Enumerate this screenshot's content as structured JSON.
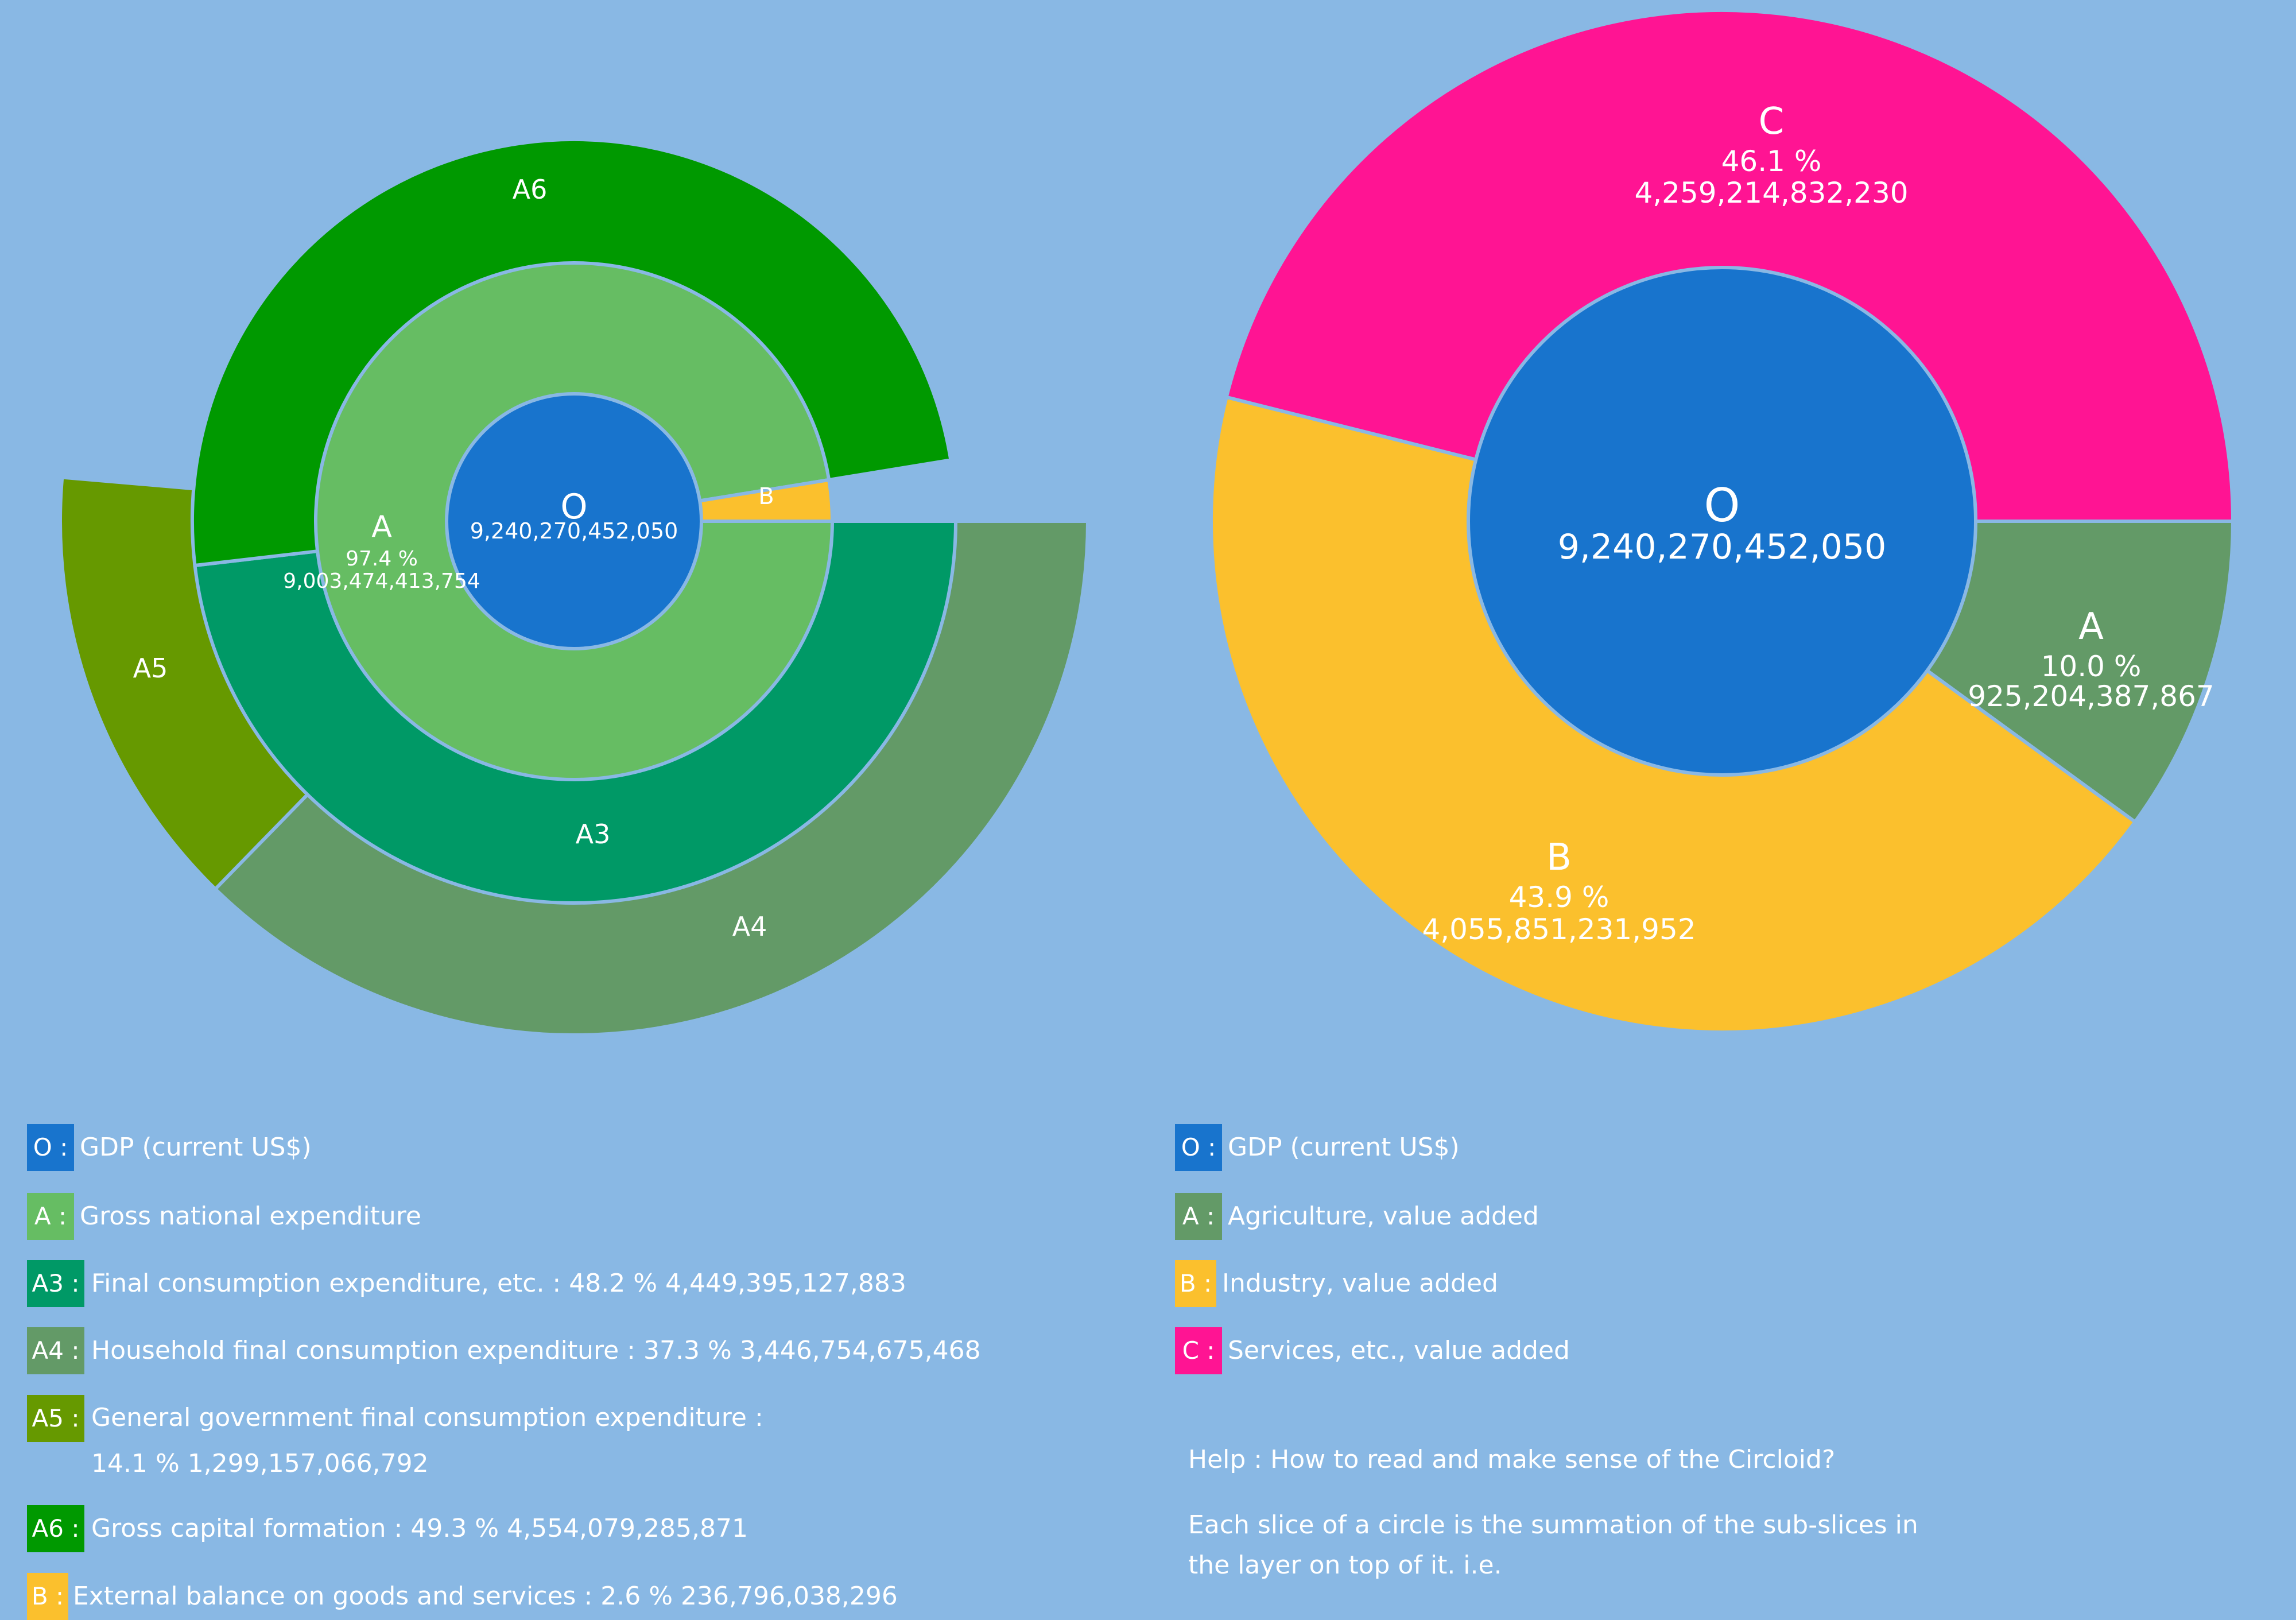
{
  "charts": {
    "left": {
      "center": {
        "code": "O",
        "value": "9,240,270,452,050"
      },
      "ring1": [
        {
          "code": "A",
          "percent": "97.4 %",
          "value": "9,003,474,413,754"
        },
        {
          "code": "B"
        }
      ],
      "ring2": [
        {
          "code": "A3"
        },
        {
          "code": "A6"
        }
      ],
      "ring3": [
        {
          "code": "A4"
        },
        {
          "code": "A5"
        }
      ]
    },
    "right": {
      "center": {
        "code": "O",
        "value": "9,240,270,452,050"
      },
      "slices": [
        {
          "code": "A",
          "percent": "10.0 %",
          "value": "925,204,387,867"
        },
        {
          "code": "B",
          "percent": "43.9 %",
          "value": "4,055,851,231,952"
        },
        {
          "code": "C",
          "percent": "46.1 %",
          "value": "4,259,214,832,230"
        }
      ]
    }
  },
  "chart_data": [
    {
      "type": "pie",
      "series": [
        {
          "level": 0,
          "categories": [
            "O"
          ],
          "values": [
            9240270452050
          ]
        },
        {
          "level": 1,
          "categories": [
            "A",
            "B"
          ],
          "values": [
            9003474413754,
            236796038296
          ],
          "percent": [
            97.4,
            2.6
          ]
        },
        {
          "level": 2,
          "categories": [
            "A3",
            "A6"
          ],
          "values": [
            4449395127883,
            4554079285871
          ],
          "percent": [
            48.2,
            49.3
          ]
        },
        {
          "level": 3,
          "categories": [
            "A4",
            "A5"
          ],
          "values": [
            3446754675468,
            1299157066792
          ],
          "percent": [
            37.3,
            14.1
          ]
        }
      ]
    },
    {
      "type": "pie",
      "series": [
        {
          "level": 0,
          "categories": [
            "O"
          ],
          "values": [
            9240270452050
          ]
        },
        {
          "level": 1,
          "categories": [
            "A",
            "B",
            "C"
          ],
          "values": [
            925204387867,
            4055851231952,
            4259214832230
          ],
          "percent": [
            10.0,
            43.9,
            46.1
          ]
        }
      ]
    }
  ],
  "legend_left": [
    {
      "code": "O",
      "text": "GDP (current US$)",
      "color": "#1874cd"
    },
    {
      "code": "A",
      "text": "Gross national expenditure",
      "color": "#66bd63"
    },
    {
      "code": "A3",
      "text": "Final consumption expenditure, etc. : 48.2 %  4,449,395,127,883",
      "color": "#009966"
    },
    {
      "code": "A4",
      "text": "Household final consumption expenditure : 37.3 %  3,446,754,675,468",
      "color": "#639a67"
    },
    {
      "code": "A5",
      "text": "General government final consumption expenditure : 14.1 %  1,299,157,066,792",
      "color": "#669900"
    },
    {
      "code": "A6",
      "text": "Gross capital formation : 49.3 %  4,554,079,285,871",
      "color": "#009900"
    },
    {
      "code": "B",
      "text": "External balance on goods and services : 2.6 %  236,796,038,296",
      "color": "#fbc02d"
    }
  ],
  "legend_right": [
    {
      "code": "O",
      "text": "GDP (current US$)",
      "color": "#1874cd"
    },
    {
      "code": "A",
      "text": "Agriculture, value added",
      "color": "#639a67"
    },
    {
      "code": "B",
      "text": "Industry, value added",
      "color": "#fbc02d"
    },
    {
      "code": "C",
      "text": "Services, etc., value added",
      "color": "#ff1493"
    }
  ],
  "help": {
    "title": "Help : How to read and make sense of the Circloid?",
    "body": "Each slice of a circle is the summation of the sub-slices in the layer on top of it. i.e."
  }
}
